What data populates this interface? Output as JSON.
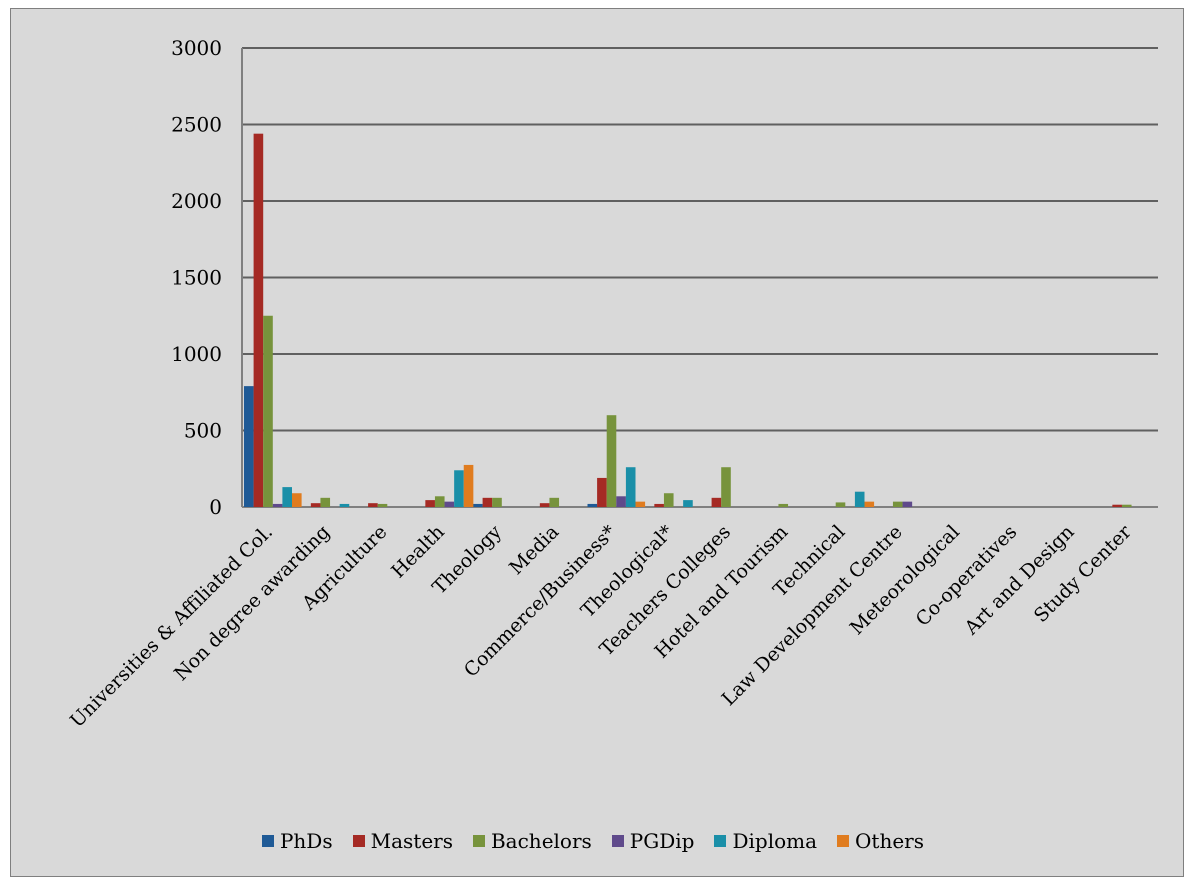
{
  "chart_data": {
    "type": "bar",
    "title": "",
    "xlabel": "",
    "ylabel": "",
    "ylim": [
      0,
      3000
    ],
    "yticks": [
      "0",
      "500",
      "1000",
      "1500",
      "2000",
      "2500",
      "3000"
    ],
    "grid": true,
    "legend_position": "bottom",
    "categories": [
      "Universities & Affiliated Col.",
      "Non degree awarding",
      "Agriculture",
      "Health",
      "Theology",
      "Media",
      "Commerce/Business*",
      "Theological*",
      "Teachers Colleges",
      "Hotel and Tourism",
      "Technical",
      "Law Development Centre",
      "Meteorological",
      "Co-operatives",
      "Art and Design",
      "Study Center"
    ],
    "series": [
      {
        "name": "PhDs",
        "color": "#1f5a96",
        "values": [
          790,
          0,
          0,
          0,
          20,
          0,
          20,
          0,
          0,
          0,
          0,
          0,
          0,
          0,
          0,
          0
        ]
      },
      {
        "name": "Masters",
        "color": "#a52a24",
        "values": [
          2440,
          25,
          25,
          45,
          60,
          25,
          190,
          20,
          60,
          0,
          0,
          0,
          0,
          0,
          0,
          15
        ]
      },
      {
        "name": "Bachelors",
        "color": "#77933c",
        "values": [
          1250,
          60,
          20,
          70,
          60,
          60,
          600,
          90,
          260,
          20,
          30,
          35,
          0,
          0,
          0,
          15
        ]
      },
      {
        "name": "PGDip",
        "color": "#5f4a8b",
        "values": [
          20,
          0,
          0,
          35,
          0,
          0,
          70,
          0,
          0,
          0,
          0,
          35,
          0,
          0,
          0,
          0
        ]
      },
      {
        "name": "Diploma",
        "color": "#1a8fa8",
        "values": [
          130,
          20,
          0,
          240,
          0,
          0,
          260,
          45,
          0,
          0,
          100,
          0,
          0,
          0,
          0,
          0
        ]
      },
      {
        "name": "Others",
        "color": "#e07c1f",
        "values": [
          90,
          0,
          0,
          275,
          0,
          0,
          35,
          0,
          0,
          0,
          35,
          0,
          0,
          0,
          0,
          0
        ]
      }
    ]
  }
}
